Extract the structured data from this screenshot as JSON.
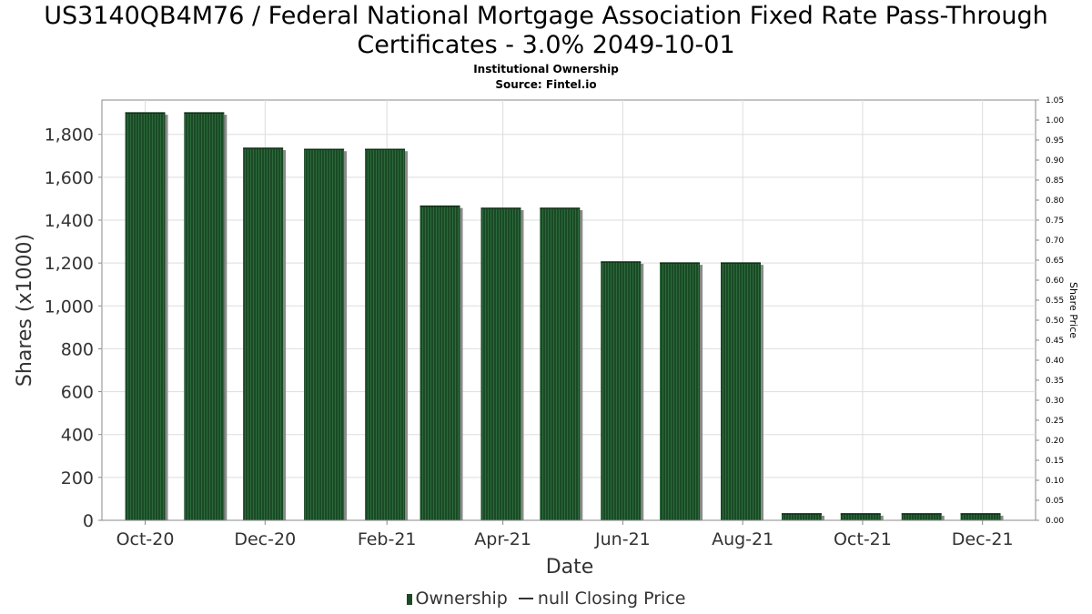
{
  "chart_data": {
    "type": "bar",
    "title_line1": "US3140QB4M76 / Federal National Mortgage Association Fixed Rate Pass-Through",
    "title_line2": "Certificates - 3.0% 2049-10-01",
    "subtitle": "Institutional Ownership",
    "source": "Source: Fintel.io",
    "xlabel": "Date",
    "ylabel": "Shares (x1000)",
    "ylabel_right": "Share Price",
    "ylim": [
      0,
      1960
    ],
    "yticks": [
      0,
      200,
      400,
      600,
      800,
      1000,
      1200,
      1400,
      1600,
      1800
    ],
    "ytick_labels": [
      "0",
      "200",
      "400",
      "600",
      "800",
      "1,000",
      "1,200",
      "1,400",
      "1,600",
      "1,800"
    ],
    "y2lim": [
      0,
      1.05
    ],
    "y2tick_labels": [
      "0.00",
      "0.05",
      "0.10",
      "0.15",
      "0.20",
      "0.25",
      "0.30",
      "0.35",
      "0.40",
      "0.45",
      "0.50",
      "0.55",
      "0.60",
      "0.65",
      "0.70",
      "0.75",
      "0.80",
      "0.85",
      "0.90",
      "0.95",
      "1.00",
      "1.05"
    ],
    "xlim": [
      "2020-09-09",
      "2021-12-28"
    ],
    "xticks": [
      "2020-10-01",
      "2020-12-01",
      "2021-02-01",
      "2021-04-01",
      "2021-06-01",
      "2021-08-01",
      "2021-10-01",
      "2021-12-01"
    ],
    "xtick_labels": [
      "Oct-20",
      "Dec-20",
      "Feb-21",
      "Apr-21",
      "Jun-21",
      "Aug-21",
      "Oct-21",
      "Dec-21"
    ],
    "series": [
      {
        "name": "Ownership",
        "dates": [
          "2020-10-01",
          "2020-10-31",
          "2020-11-30",
          "2020-12-31",
          "2021-01-31",
          "2021-02-28",
          "2021-03-31",
          "2021-04-30",
          "2021-05-31",
          "2021-06-30",
          "2021-07-31",
          "2021-08-31",
          "2021-09-30",
          "2021-10-31",
          "2021-11-30"
        ],
        "values": [
          1900,
          1900,
          1735,
          1730,
          1730,
          1465,
          1455,
          1455,
          1205,
          1200,
          1200,
          30,
          30,
          30,
          30
        ]
      },
      {
        "name": "null Closing Price",
        "values": []
      }
    ],
    "grid": true,
    "legend_position": "bottom",
    "colors": {
      "bar": "#1a4a26",
      "bar_shadow": "#8a8a8a",
      "grid": "#dddddd",
      "axis": "#888888"
    }
  },
  "legend": {
    "ownership": "Ownership",
    "closing_price": "null Closing Price"
  }
}
